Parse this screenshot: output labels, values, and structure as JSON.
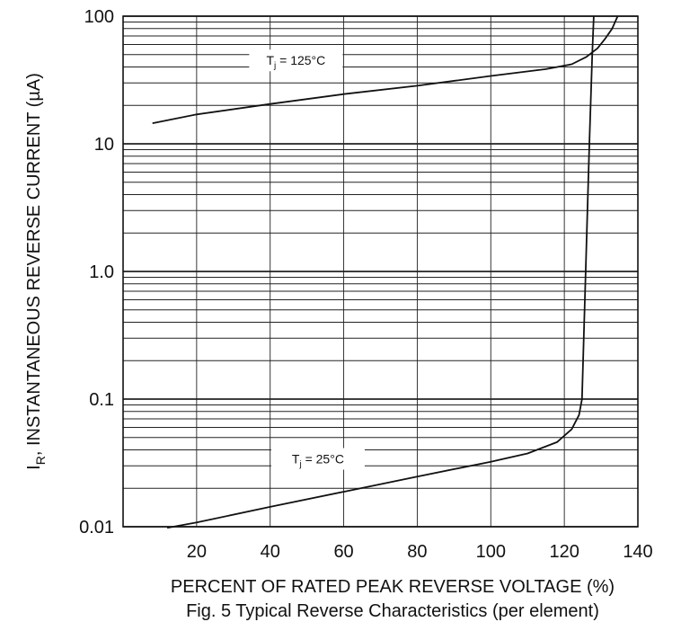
{
  "chart_data": {
    "type": "line",
    "caption": "Fig. 5  Typical Reverse Characteristics (per element)",
    "ylabel": {
      "main": "I",
      "sub": "R",
      "rest": ", INSTANTANEOUS REVERSE CURRENT (µA)"
    },
    "xlabel": "PERCENT OF RATED PEAK  REVERSE VOLTAGE (%)",
    "x_scale": "linear",
    "y_scale": "log",
    "xlim": [
      0,
      140
    ],
    "ylim": [
      0.01,
      100
    ],
    "grid": true,
    "x_ticks": [
      20,
      40,
      60,
      80,
      100,
      120,
      140
    ],
    "y_ticks": [
      {
        "value": 0.01,
        "label": "0.01"
      },
      {
        "value": 0.1,
        "label": "0.1"
      },
      {
        "value": 1,
        "label": "1.0"
      },
      {
        "value": 10,
        "label": "10"
      },
      {
        "value": 100,
        "label": "100"
      }
    ],
    "series": [
      {
        "label_main": "T",
        "label_sub": "j",
        "label_rest": " = 125°C",
        "label_at": {
          "x": 47,
          "y": 45
        },
        "points": [
          {
            "x": 8,
            "y": 14.5
          },
          {
            "x": 20,
            "y": 17
          },
          {
            "x": 40,
            "y": 20.5
          },
          {
            "x": 60,
            "y": 24.5
          },
          {
            "x": 80,
            "y": 28.5
          },
          {
            "x": 100,
            "y": 34
          },
          {
            "x": 115,
            "y": 38.5
          },
          {
            "x": 122,
            "y": 42
          },
          {
            "x": 126,
            "y": 48
          },
          {
            "x": 129,
            "y": 56
          },
          {
            "x": 131,
            "y": 66
          },
          {
            "x": 133,
            "y": 80
          },
          {
            "x": 134.5,
            "y": 100
          }
        ]
      },
      {
        "label_main": "T",
        "label_sub": "j",
        "label_rest": " = 25°C",
        "label_at": {
          "x": 53,
          "y": 0.034
        },
        "points": [
          {
            "x": 12,
            "y": 0.0098
          },
          {
            "x": 20,
            "y": 0.0108
          },
          {
            "x": 40,
            "y": 0.0143
          },
          {
            "x": 60,
            "y": 0.0188
          },
          {
            "x": 80,
            "y": 0.0247
          },
          {
            "x": 100,
            "y": 0.0323
          },
          {
            "x": 110,
            "y": 0.0375
          },
          {
            "x": 118,
            "y": 0.046
          },
          {
            "x": 122,
            "y": 0.058
          },
          {
            "x": 124,
            "y": 0.075
          },
          {
            "x": 124.8,
            "y": 0.1
          },
          {
            "x": 125.8,
            "y": 1
          },
          {
            "x": 126.8,
            "y": 10
          },
          {
            "x": 127.6,
            "y": 50
          },
          {
            "x": 128,
            "y": 100
          }
        ]
      }
    ]
  }
}
